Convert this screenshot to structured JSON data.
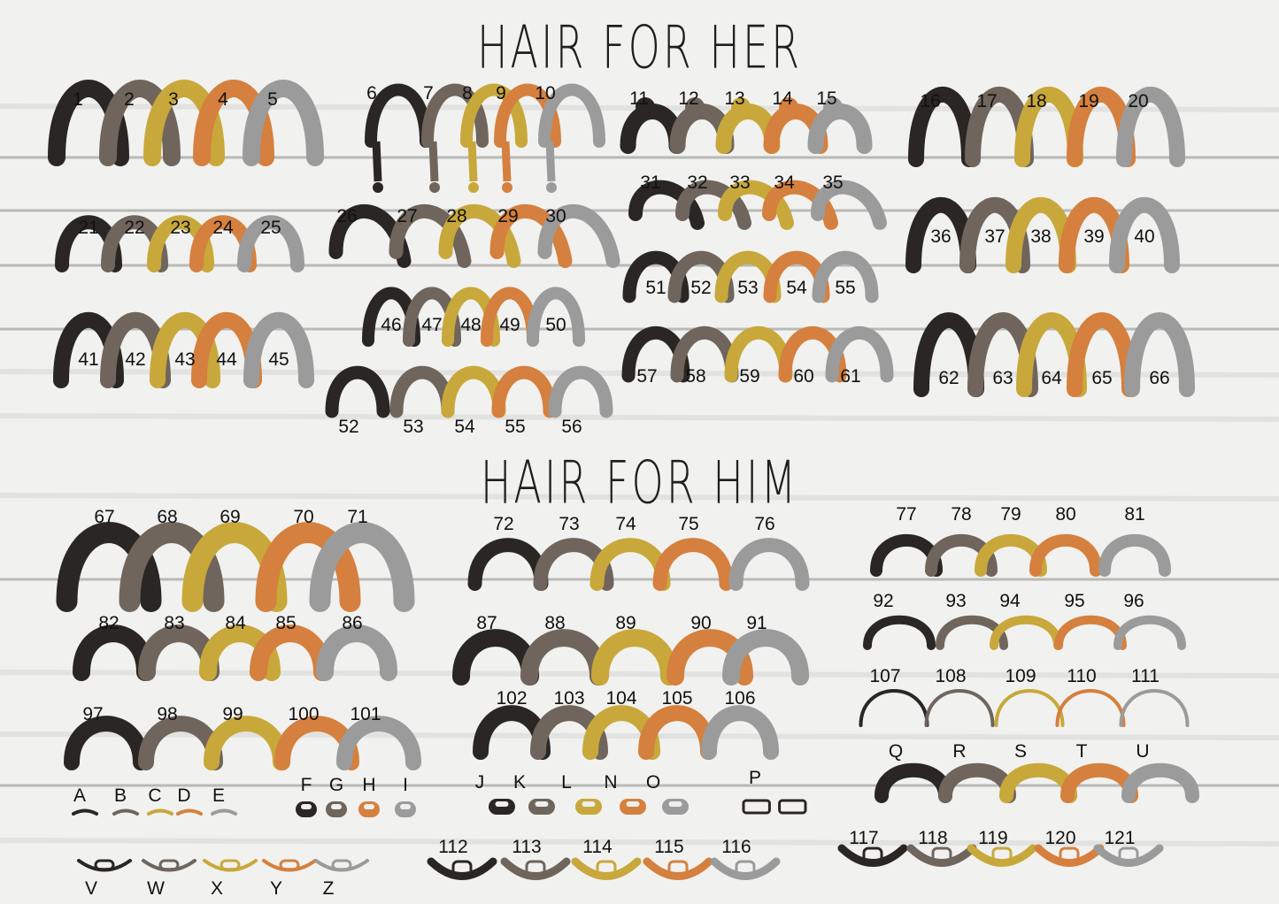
{
  "titles": {
    "her": "HAIR FOR HER",
    "him": "HAIR FOR HIM"
  },
  "palette": {
    "black": "#2a2623",
    "brown": "#6f655c",
    "gold": "#c8a83a",
    "orange": "#d5803e",
    "grey": "#9b9b9b"
  },
  "groups": [
    {
      "section": "her",
      "labels": [
        "1",
        "2",
        "3",
        "4",
        "5"
      ]
    },
    {
      "section": "her",
      "labels": [
        "6",
        "7",
        "8",
        "9",
        "10"
      ]
    },
    {
      "section": "her",
      "labels": [
        "11",
        "12",
        "13",
        "14",
        "15"
      ]
    },
    {
      "section": "her",
      "labels": [
        "16",
        "17",
        "18",
        "19",
        "20"
      ]
    },
    {
      "section": "her",
      "labels": [
        "21",
        "22",
        "23",
        "24",
        "25"
      ]
    },
    {
      "section": "her",
      "labels": [
        "26",
        "27",
        "28",
        "29",
        "30"
      ]
    },
    {
      "section": "her",
      "labels": [
        "31",
        "32",
        "33",
        "34",
        "35"
      ]
    },
    {
      "section": "her",
      "labels": [
        "36",
        "37",
        "38",
        "39",
        "40"
      ]
    },
    {
      "section": "her",
      "labels": [
        "41",
        "42",
        "43",
        "44",
        "45"
      ]
    },
    {
      "section": "her",
      "labels": [
        "46",
        "47",
        "48",
        "49",
        "50"
      ]
    },
    {
      "section": "her",
      "labels": [
        "51",
        "52",
        "53",
        "54",
        "55"
      ]
    },
    {
      "section": "her",
      "labels": [
        "52",
        "53",
        "54",
        "55",
        "56"
      ]
    },
    {
      "section": "her",
      "labels": [
        "57",
        "58",
        "59",
        "60",
        "61"
      ]
    },
    {
      "section": "her",
      "labels": [
        "62",
        "63",
        "64",
        "65",
        "66"
      ]
    },
    {
      "section": "him",
      "labels": [
        "67",
        "68",
        "69",
        "70",
        "71"
      ]
    },
    {
      "section": "him",
      "labels": [
        "72",
        "73",
        "74",
        "75",
        "76"
      ]
    },
    {
      "section": "him",
      "labels": [
        "77",
        "78",
        "79",
        "80",
        "81"
      ]
    },
    {
      "section": "him",
      "labels": [
        "82",
        "83",
        "84",
        "85",
        "86"
      ]
    },
    {
      "section": "him",
      "labels": [
        "87",
        "88",
        "89",
        "90",
        "91"
      ]
    },
    {
      "section": "him",
      "labels": [
        "92",
        "93",
        "94",
        "95",
        "96"
      ]
    },
    {
      "section": "him",
      "labels": [
        "97",
        "98",
        "99",
        "100",
        "101"
      ]
    },
    {
      "section": "him",
      "labels": [
        "102",
        "103",
        "104",
        "105",
        "106"
      ]
    },
    {
      "section": "him",
      "labels": [
        "107",
        "108",
        "109",
        "110",
        "111"
      ]
    },
    {
      "section": "him",
      "labels": [
        "Q",
        "R",
        "S",
        "T",
        "U"
      ]
    },
    {
      "section": "him",
      "labels": [
        "A",
        "B",
        "C",
        "D",
        "E"
      ]
    },
    {
      "section": "him",
      "labels": [
        "F",
        "G",
        "H",
        "I"
      ]
    },
    {
      "section": "him",
      "labels": [
        "J",
        "K",
        "L",
        "N",
        "O"
      ]
    },
    {
      "section": "him",
      "labels": [
        "P"
      ]
    },
    {
      "section": "him",
      "labels": [
        "V",
        "W",
        "X",
        "Y",
        "Z"
      ]
    },
    {
      "section": "him",
      "labels": [
        "112",
        "113",
        "114",
        "115",
        "116"
      ]
    },
    {
      "section": "him",
      "labels": [
        "117",
        "118",
        "119",
        "120",
        "121"
      ]
    }
  ]
}
